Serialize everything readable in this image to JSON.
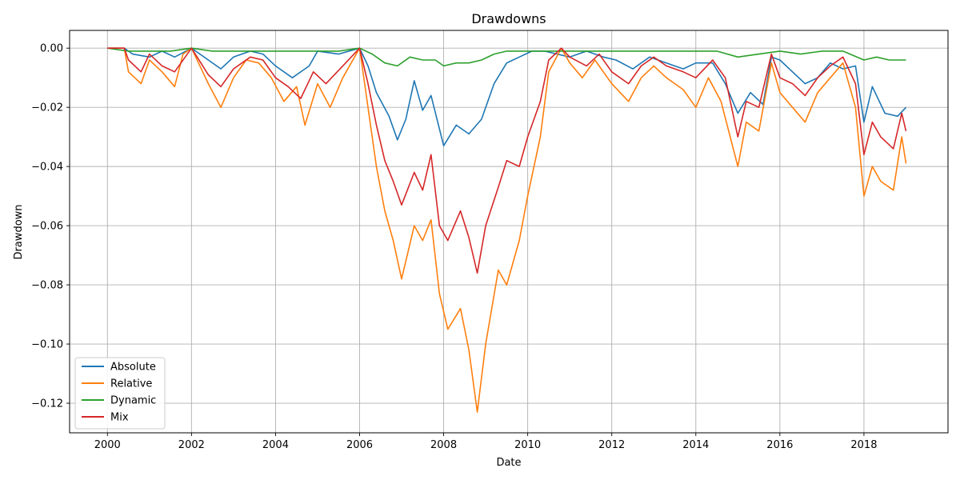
{
  "chart_data": {
    "type": "line",
    "title": "Drawdowns",
    "xlabel": "Date",
    "ylabel": "Drawdown",
    "xlim": [
      1999.1,
      2020.0
    ],
    "ylim": [
      -0.13,
      0.006
    ],
    "xticks": [
      2000,
      2002,
      2004,
      2006,
      2008,
      2010,
      2012,
      2014,
      2016,
      2018
    ],
    "xtick_labels": [
      "2000",
      "2002",
      "2004",
      "2006",
      "2008",
      "2010",
      "2012",
      "2014",
      "2016",
      "2018"
    ],
    "yticks": [
      0.0,
      -0.02,
      -0.04,
      -0.06,
      -0.08,
      -0.1,
      -0.12
    ],
    "ytick_labels": [
      "0.00",
      "−0.02",
      "−0.04",
      "−0.06",
      "−0.08",
      "−0.10",
      "−0.12"
    ],
    "grid": true,
    "legend_position": "lower-left",
    "series": [
      {
        "name": "Absolute",
        "color": "#1f77b4",
        "x": [
          2000.0,
          2000.4,
          2000.6,
          2001.0,
          2001.3,
          2001.6,
          2002.0,
          2002.4,
          2002.7,
          2003.0,
          2003.4,
          2003.7,
          2004.0,
          2004.4,
          2004.8,
          2005.0,
          2005.5,
          2006.0,
          2006.2,
          2006.4,
          2006.7,
          2006.9,
          2007.1,
          2007.3,
          2007.5,
          2007.7,
          2008.0,
          2008.3,
          2008.6,
          2008.9,
          2009.2,
          2009.5,
          2009.8,
          2010.1,
          2010.4,
          2010.7,
          2011.0,
          2011.4,
          2011.8,
          2012.1,
          2012.5,
          2012.9,
          2013.3,
          2013.7,
          2014.0,
          2014.4,
          2014.7,
          2015.0,
          2015.3,
          2015.6,
          2015.8,
          2016.0,
          2016.3,
          2016.6,
          2016.9,
          2017.2,
          2017.5,
          2017.8,
          2018.0,
          2018.2,
          2018.5,
          2018.8,
          2019.0
        ],
        "y": [
          0.0,
          0.0,
          -0.002,
          -0.003,
          -0.001,
          -0.003,
          0.0,
          -0.004,
          -0.007,
          -0.003,
          -0.001,
          -0.002,
          -0.006,
          -0.01,
          -0.006,
          -0.001,
          -0.002,
          0.0,
          -0.006,
          -0.015,
          -0.023,
          -0.031,
          -0.024,
          -0.011,
          -0.021,
          -0.016,
          -0.033,
          -0.026,
          -0.029,
          -0.024,
          -0.012,
          -0.005,
          -0.003,
          -0.001,
          -0.001,
          -0.002,
          -0.003,
          -0.001,
          -0.003,
          -0.004,
          -0.007,
          -0.003,
          -0.005,
          -0.007,
          -0.005,
          -0.005,
          -0.012,
          -0.022,
          -0.015,
          -0.019,
          -0.003,
          -0.004,
          -0.008,
          -0.012,
          -0.01,
          -0.005,
          -0.007,
          -0.006,
          -0.025,
          -0.013,
          -0.022,
          -0.023,
          -0.02
        ]
      },
      {
        "name": "Relative",
        "color": "#ff7f0e",
        "x": [
          2000.0,
          2000.4,
          2000.5,
          2000.8,
          2001.0,
          2001.3,
          2001.6,
          2001.8,
          2002.0,
          2002.4,
          2002.7,
          2003.0,
          2003.3,
          2003.6,
          2003.9,
          2004.2,
          2004.5,
          2004.7,
          2005.0,
          2005.3,
          2005.6,
          2006.0,
          2006.2,
          2006.4,
          2006.6,
          2006.8,
          2007.0,
          2007.3,
          2007.5,
          2007.7,
          2007.9,
          2008.1,
          2008.4,
          2008.6,
          2008.8,
          2009.0,
          2009.3,
          2009.5,
          2009.8,
          2010.0,
          2010.3,
          2010.5,
          2010.8,
          2011.0,
          2011.3,
          2011.6,
          2012.0,
          2012.4,
          2012.7,
          2013.0,
          2013.3,
          2013.7,
          2014.0,
          2014.3,
          2014.6,
          2015.0,
          2015.2,
          2015.5,
          2015.8,
          2016.0,
          2016.3,
          2016.6,
          2016.9,
          2017.2,
          2017.5,
          2017.8,
          2018.0,
          2018.2,
          2018.4,
          2018.7,
          2018.9,
          2019.0
        ],
        "y": [
          0.0,
          0.0,
          -0.008,
          -0.012,
          -0.004,
          -0.008,
          -0.013,
          -0.002,
          0.0,
          -0.012,
          -0.02,
          -0.01,
          -0.004,
          -0.005,
          -0.01,
          -0.018,
          -0.013,
          -0.026,
          -0.012,
          -0.02,
          -0.01,
          0.0,
          -0.02,
          -0.04,
          -0.055,
          -0.065,
          -0.078,
          -0.06,
          -0.065,
          -0.058,
          -0.083,
          -0.095,
          -0.088,
          -0.102,
          -0.123,
          -0.1,
          -0.075,
          -0.08,
          -0.065,
          -0.05,
          -0.03,
          -0.008,
          0.0,
          -0.005,
          -0.01,
          -0.004,
          -0.012,
          -0.018,
          -0.01,
          -0.006,
          -0.01,
          -0.014,
          -0.02,
          -0.01,
          -0.018,
          -0.04,
          -0.025,
          -0.028,
          -0.005,
          -0.015,
          -0.02,
          -0.025,
          -0.015,
          -0.01,
          -0.005,
          -0.02,
          -0.05,
          -0.04,
          -0.045,
          -0.048,
          -0.03,
          -0.039
        ]
      },
      {
        "name": "Dynamic",
        "color": "#2ca02c",
        "x": [
          2000.0,
          2000.5,
          2001.0,
          2001.5,
          2002.0,
          2002.5,
          2003.0,
          2003.5,
          2004.0,
          2004.5,
          2005.0,
          2005.5,
          2006.0,
          2006.3,
          2006.6,
          2006.9,
          2007.2,
          2007.5,
          2007.8,
          2008.0,
          2008.3,
          2008.6,
          2008.9,
          2009.2,
          2009.5,
          2009.8,
          2010.0,
          2010.5,
          2011.0,
          2011.5,
          2012.0,
          2012.5,
          2013.0,
          2013.5,
          2014.0,
          2014.5,
          2015.0,
          2015.5,
          2016.0,
          2016.5,
          2017.0,
          2017.5,
          2018.0,
          2018.3,
          2018.6,
          2019.0
        ],
        "y": [
          0.0,
          -0.001,
          -0.001,
          -0.001,
          0.0,
          -0.001,
          -0.001,
          -0.001,
          -0.001,
          -0.001,
          -0.001,
          -0.001,
          0.0,
          -0.002,
          -0.005,
          -0.006,
          -0.003,
          -0.004,
          -0.004,
          -0.006,
          -0.005,
          -0.005,
          -0.004,
          -0.002,
          -0.001,
          -0.001,
          -0.001,
          -0.001,
          -0.001,
          -0.001,
          -0.001,
          -0.001,
          -0.001,
          -0.001,
          -0.001,
          -0.001,
          -0.003,
          -0.002,
          -0.001,
          -0.002,
          -0.001,
          -0.001,
          -0.004,
          -0.003,
          -0.004,
          -0.004
        ]
      },
      {
        "name": "Mix",
        "color": "#d62728",
        "x": [
          2000.0,
          2000.4,
          2000.5,
          2000.8,
          2001.0,
          2001.3,
          2001.6,
          2002.0,
          2002.4,
          2002.7,
          2003.0,
          2003.4,
          2003.7,
          2004.0,
          2004.3,
          2004.6,
          2004.9,
          2005.2,
          2005.6,
          2006.0,
          2006.2,
          2006.4,
          2006.6,
          2006.8,
          2007.0,
          2007.3,
          2007.5,
          2007.7,
          2007.9,
          2008.1,
          2008.4,
          2008.6,
          2008.8,
          2009.0,
          2009.3,
          2009.5,
          2009.8,
          2010.0,
          2010.3,
          2010.5,
          2010.8,
          2011.0,
          2011.4,
          2011.7,
          2012.0,
          2012.4,
          2012.7,
          2013.0,
          2013.3,
          2013.7,
          2014.0,
          2014.4,
          2014.7,
          2015.0,
          2015.2,
          2015.5,
          2015.8,
          2016.0,
          2016.3,
          2016.6,
          2016.9,
          2017.2,
          2017.5,
          2017.8,
          2018.0,
          2018.2,
          2018.4,
          2018.7,
          2018.9,
          2019.0
        ],
        "y": [
          0.0,
          0.0,
          -0.004,
          -0.008,
          -0.002,
          -0.006,
          -0.008,
          0.0,
          -0.009,
          -0.013,
          -0.007,
          -0.003,
          -0.004,
          -0.01,
          -0.013,
          -0.017,
          -0.008,
          -0.012,
          -0.006,
          0.0,
          -0.012,
          -0.026,
          -0.038,
          -0.045,
          -0.053,
          -0.042,
          -0.048,
          -0.036,
          -0.06,
          -0.065,
          -0.055,
          -0.064,
          -0.076,
          -0.06,
          -0.047,
          -0.038,
          -0.04,
          -0.03,
          -0.018,
          -0.004,
          0.0,
          -0.003,
          -0.006,
          -0.002,
          -0.008,
          -0.012,
          -0.006,
          -0.003,
          -0.006,
          -0.008,
          -0.01,
          -0.004,
          -0.01,
          -0.03,
          -0.018,
          -0.02,
          -0.002,
          -0.01,
          -0.012,
          -0.016,
          -0.01,
          -0.006,
          -0.003,
          -0.012,
          -0.036,
          -0.025,
          -0.03,
          -0.034,
          -0.022,
          -0.028
        ]
      }
    ]
  }
}
